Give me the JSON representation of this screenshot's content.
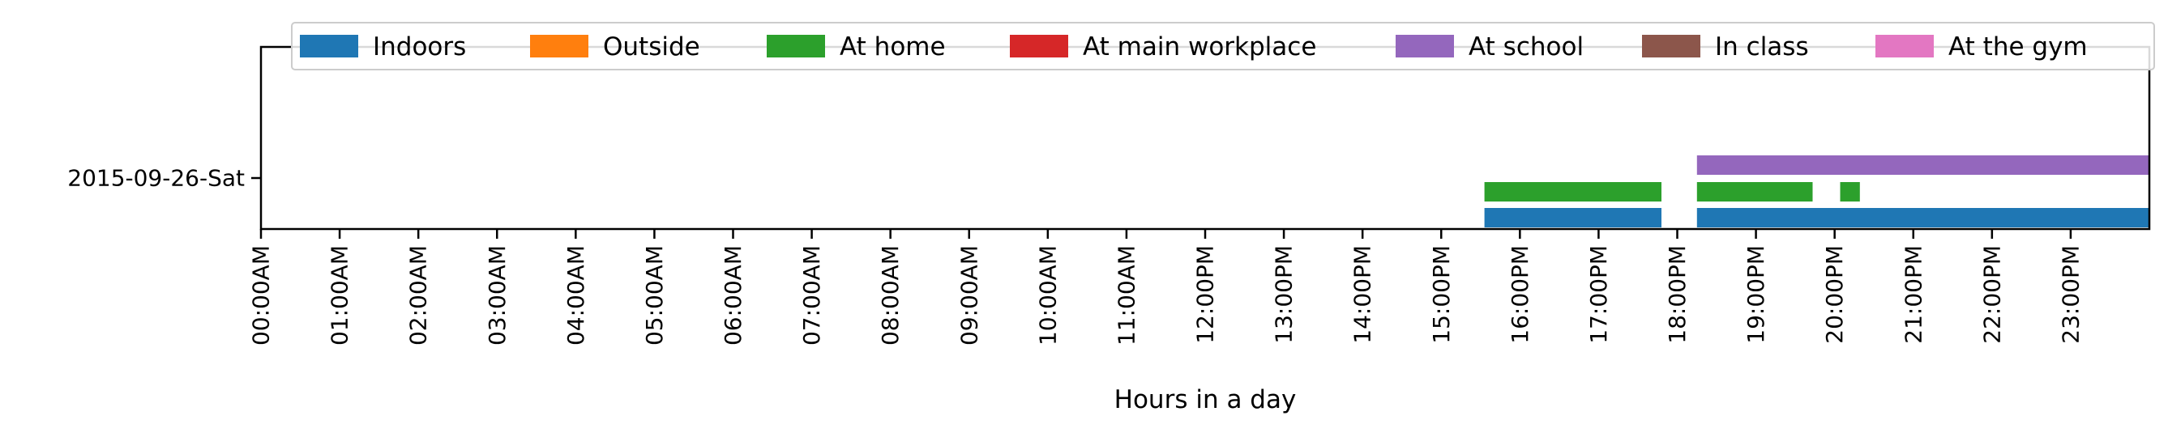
{
  "chart_data": {
    "type": "timeline",
    "xlabel": "Hours in a day",
    "ylabel": "",
    "xlim": [
      0,
      24
    ],
    "x_ticks": [
      {
        "value": 0,
        "label": "00:00AM"
      },
      {
        "value": 1,
        "label": "01:00AM"
      },
      {
        "value": 2,
        "label": "02:00AM"
      },
      {
        "value": 3,
        "label": "03:00AM"
      },
      {
        "value": 4,
        "label": "04:00AM"
      },
      {
        "value": 5,
        "label": "05:00AM"
      },
      {
        "value": 6,
        "label": "06:00AM"
      },
      {
        "value": 7,
        "label": "07:00AM"
      },
      {
        "value": 8,
        "label": "08:00AM"
      },
      {
        "value": 9,
        "label": "09:00AM"
      },
      {
        "value": 10,
        "label": "10:00AM"
      },
      {
        "value": 11,
        "label": "11:00AM"
      },
      {
        "value": 12,
        "label": "12:00PM"
      },
      {
        "value": 13,
        "label": "13:00PM"
      },
      {
        "value": 14,
        "label": "14:00PM"
      },
      {
        "value": 15,
        "label": "15:00PM"
      },
      {
        "value": 16,
        "label": "16:00PM"
      },
      {
        "value": 17,
        "label": "17:00PM"
      },
      {
        "value": 18,
        "label": "18:00PM"
      },
      {
        "value": 19,
        "label": "19:00PM"
      },
      {
        "value": 20,
        "label": "20:00PM"
      },
      {
        "value": 21,
        "label": "21:00PM"
      },
      {
        "value": 22,
        "label": "22:00PM"
      },
      {
        "value": 23,
        "label": "23:00PM"
      }
    ],
    "y_categories": [
      "2015-09-26-Sat"
    ],
    "legend_position": "top",
    "series": [
      {
        "name": "Indoors",
        "color": "#1f77b4",
        "intervals": [
          [
            15.55,
            17.8
          ],
          [
            18.25,
            24
          ]
        ]
      },
      {
        "name": "Outside",
        "color": "#ff7f0e",
        "intervals": []
      },
      {
        "name": "At home",
        "color": "#2ca02c",
        "intervals": [
          [
            15.55,
            17.8
          ],
          [
            18.25,
            19.72
          ],
          [
            20.07,
            20.32
          ]
        ]
      },
      {
        "name": "At main workplace",
        "color": "#d62728",
        "intervals": []
      },
      {
        "name": "At school",
        "color": "#9467bd",
        "intervals": [
          [
            18.25,
            24
          ]
        ]
      },
      {
        "name": "In class",
        "color": "#8c564b",
        "intervals": []
      },
      {
        "name": "At the gym",
        "color": "#e377c2",
        "intervals": []
      }
    ]
  }
}
